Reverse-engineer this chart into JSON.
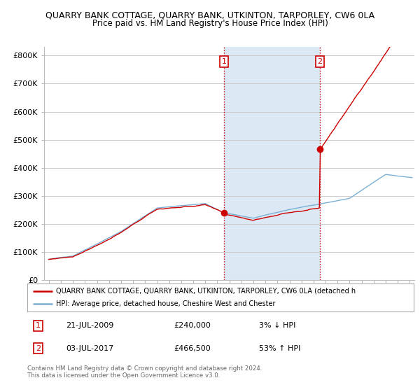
{
  "title": "QUARRY BANK COTTAGE, QUARRY BANK, UTKINTON, TARPORLEY, CW6 0LA",
  "subtitle": "Price paid vs. HM Land Registry's House Price Index (HPI)",
  "ylabel_ticks": [
    "£0",
    "£100K",
    "£200K",
    "£300K",
    "£400K",
    "£500K",
    "£600K",
    "£700K",
    "£800K"
  ],
  "ytick_values": [
    0,
    100000,
    200000,
    300000,
    400000,
    500000,
    600000,
    700000,
    800000
  ],
  "ylim": [
    0,
    830000
  ],
  "xlim_start": 1994.6,
  "xlim_end": 2025.4,
  "hpi_color": "#7bafd4",
  "hpi_fill_color": "#dce9f5",
  "sale_color": "#cc0000",
  "plot_bg": "#ffffff",
  "grid_color": "#cccccc",
  "vline_color": "#cc0000",
  "sale1_x": 2009.55,
  "sale1_y": 240000,
  "sale2_x": 2017.53,
  "sale2_y": 466500,
  "legend_line1": "QUARRY BANK COTTAGE, QUARRY BANK, UTKINTON, TARPORLEY, CW6 0LA (detached h",
  "legend_line2": "HPI: Average price, detached house, Cheshire West and Chester",
  "annotation1_date": "21-JUL-2009",
  "annotation1_price": "£240,000",
  "annotation1_hpi": "3% ↓ HPI",
  "annotation2_date": "03-JUL-2017",
  "annotation2_price": "£466,500",
  "annotation2_hpi": "53% ↑ HPI",
  "footer": "Contains HM Land Registry data © Crown copyright and database right 2024.\nThis data is licensed under the Open Government Licence v3.0."
}
